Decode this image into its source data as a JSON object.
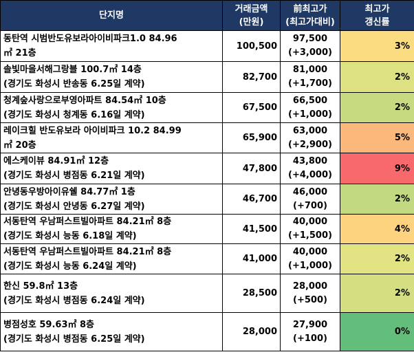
{
  "header": {
    "name": "단지명",
    "amount_line1": "거래금액",
    "amount_line2": "(만원)",
    "prev_line1": "前최고가",
    "prev_line2": "(최고가대비)",
    "rate_line1": "최고가",
    "rate_line2": "갱신률"
  },
  "rows": [
    {
      "name1": "동탄역 시범반도유보라아이비파크1.0 84.96",
      "name2": "㎡ 21층",
      "amount": "100,500",
      "prev": "97,500",
      "diff": "(+3,000)",
      "rate": "3%",
      "color": "#fbdc80"
    },
    {
      "name1": "솔빛마을서해그랑블 100.7㎡ 14층",
      "name2": "(경기도 화성시 반송동 6.25일 계약)",
      "amount": "82,700",
      "prev": "81,000",
      "diff": "(+1,700)",
      "rate": "2%",
      "color": "#dde182"
    },
    {
      "name1": "청계숲사랑으로부영아파트 84.54㎡ 10층",
      "name2": "(경기도 화성시 청계동 6.16일 계약)",
      "amount": "67,500",
      "prev": "66,500",
      "diff": "(+1,000)",
      "rate": "2%",
      "color": "#c7da7f"
    },
    {
      "name1": "레이크힐 반도유보라 아이비파크 10.2 84.99",
      "name2": "㎡ 20층",
      "amount": "65,900",
      "prev": "63,000",
      "diff": "(+2,900)",
      "rate": "5%",
      "color": "#fcb87a"
    },
    {
      "name1": "에스케이뷰 84.91㎡ 12층",
      "name2": "(경기도 화성시 병점동 6.21일 계약)",
      "amount": "47,800",
      "prev": "43,800",
      "diff": "(+4,000)",
      "rate": "9%",
      "color": "#f8696b"
    },
    {
      "name1": "안녕동우방아이유쉘 84.77㎡ 1층",
      "name2": "(경기도 화성시 안녕동 6.27일 계약)",
      "amount": "46,700",
      "prev": "46,000",
      "diff": "(+700)",
      "rate": "2%",
      "color": "#c2d981"
    },
    {
      "name1": "서동탄역 우남퍼스트빌아파트 84.21㎡ 8층",
      "name2": "(경기도 화성시 능동 6.18일 계약)",
      "amount": "41,500",
      "prev": "40,000",
      "diff": "(+1,500)",
      "rate": "4%",
      "color": "#fed37f"
    },
    {
      "name1": "서동탄역 우남퍼스트빌아파트 84.21㎡ 8층",
      "name2": "(경기도 화성시 능동 6.24일 계약)",
      "amount": "41,000",
      "prev": "40,000",
      "diff": "(+1,000)",
      "rate": "2%",
      "color": "#e2e383"
    },
    {
      "name1": "한신 59.8㎡ 13층",
      "name2": "(경기도 화성시 병점동 6.24일 계약)",
      "amount": "28,500",
      "prev": "28,000",
      "diff": "(+500)",
      "rate": "2%",
      "color": "#d4df82"
    },
    {
      "name1": "병점성호 59.63㎡ 8층",
      "name2": "(경기도 화성시 병점동 6.25일 계약)",
      "amount": "28,000",
      "prev": "27,900",
      "diff": "(+100)",
      "rate": "0%",
      "color": "#63be7b"
    }
  ]
}
